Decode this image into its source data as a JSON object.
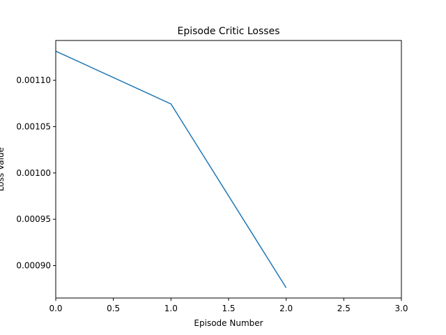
{
  "chart_data": {
    "type": "line",
    "title": "Episode Critic Losses",
    "xlabel": "Episode Number",
    "ylabel": "Loss Value",
    "xlim": [
      0.0,
      3.0
    ],
    "ylim": [
      0.000865,
      0.001143
    ],
    "x_ticks": [
      0.0,
      0.5,
      1.0,
      1.5,
      2.0,
      2.5,
      3.0
    ],
    "x_tick_labels": [
      "0.0",
      "0.5",
      "1.0",
      "1.5",
      "2.0",
      "2.5",
      "3.0"
    ],
    "y_ticks": [
      0.0009,
      0.00095,
      0.001,
      0.00105,
      0.0011
    ],
    "y_tick_labels": [
      "0.00090",
      "0.00095",
      "0.00100",
      "0.00105",
      "0.00110"
    ],
    "grid": false,
    "series": [
      {
        "x": [
          0,
          1,
          2
        ],
        "values": [
          0.0011315,
          0.0010745,
          0.000876
        ],
        "color": "#1f77b4"
      }
    ]
  }
}
